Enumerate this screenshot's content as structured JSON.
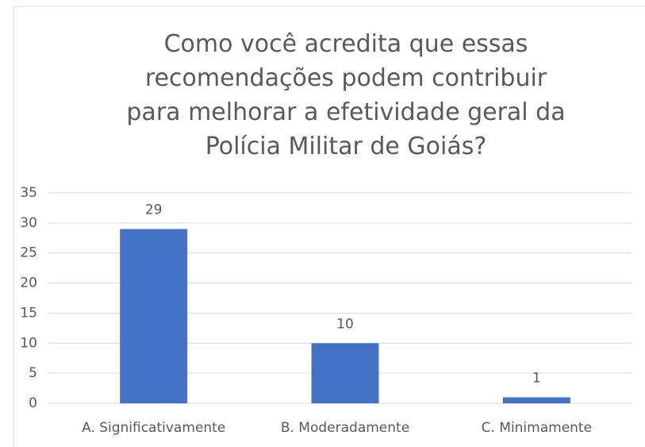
{
  "chart_data": {
    "type": "bar",
    "title": "Como você acredita que essas recomendações podem contribuir para melhorar a efetividade geral da Polícia Militar de Goiás?",
    "categories": [
      "A. Significativamente",
      "B. Moderadamente",
      "C. Minimamente"
    ],
    "values": [
      29,
      10,
      1
    ],
    "color": "#4472c4",
    "ylim": [
      0,
      35
    ],
    "yticks": [
      0,
      5,
      10,
      15,
      20,
      25,
      30,
      35
    ],
    "grid": true
  }
}
